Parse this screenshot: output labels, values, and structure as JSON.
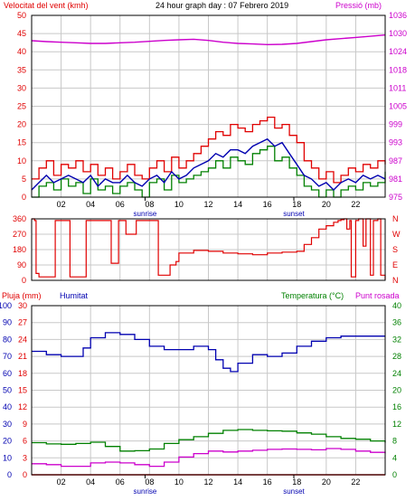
{
  "title": "24 hour graph day : 07 Febrero 2019",
  "panel1": {
    "left_label": "Velocitat del vent (kmh)",
    "right_label": "Pressió (mb)"
  },
  "panel3": {
    "label_rain": "Pluja (mm)",
    "label_humidity": "Humitat",
    "label_temp": "Temperatura (°C)",
    "label_dew": "Punt rosada"
  },
  "x_ticks": [
    "02",
    "04",
    "06",
    "08",
    "10",
    "12",
    "14",
    "16",
    "18",
    "20",
    "22"
  ],
  "sunrise_label": "sunrise",
  "sunset_label": "sunset",
  "sunrise_hour": 7.7,
  "sunset_hour": 17.8,
  "colors": {
    "wind": "#e00000",
    "gust": "#e00000",
    "avg_wind": "#0000b0",
    "speed_green": "#008000",
    "pressure": "#cc00cc",
    "direction": "#e00000",
    "humidity": "#0000b0",
    "temperature": "#008000",
    "dew_point": "#cc00cc",
    "rain": "#e00000",
    "grid": "#c8c8c8",
    "frame": "#000000"
  },
  "chart_data": [
    {
      "type": "line",
      "name": "wind-pressure",
      "title": "24 hour graph day : 07 Febrero 2019",
      "ylabel_left": "Velocitat del vent (kmh)",
      "ylabel_right": "Pressió (mb)",
      "xlim": [
        0,
        24
      ],
      "ylim_left": [
        0,
        50
      ],
      "yticks_left": [
        "0",
        "5",
        "10",
        "15",
        "20",
        "25",
        "30",
        "35",
        "40",
        "45",
        "50"
      ],
      "ylim_right": [
        975,
        1036
      ],
      "yticks_right": [
        "975",
        "981",
        "987",
        "993",
        "999",
        "1005",
        "1011",
        "1018",
        "1024",
        "1030",
        "1036"
      ],
      "series": [
        {
          "name": "gust",
          "axis": "left",
          "x": [
            0,
            0.5,
            1,
            1.5,
            2,
            2.5,
            3,
            3.5,
            4,
            4.5,
            5,
            5.5,
            6,
            6.5,
            7,
            7.5,
            8,
            8.5,
            9,
            9.5,
            10,
            10.5,
            11,
            11.5,
            12,
            12.5,
            13,
            13.5,
            14,
            14.5,
            15,
            15.5,
            16,
            16.5,
            17,
            17.5,
            18,
            18.5,
            19,
            19.5,
            20,
            20.5,
            21,
            21.5,
            22,
            22.5,
            23,
            23.5,
            24
          ],
          "y": [
            5,
            8,
            10,
            6,
            9,
            8,
            10,
            7,
            9,
            6,
            8,
            5,
            7,
            9,
            6,
            5,
            8,
            10,
            7,
            11,
            8,
            10,
            12,
            14,
            16,
            18,
            17,
            20,
            19,
            18,
            20,
            21,
            22,
            19,
            20,
            17,
            15,
            10,
            8,
            5,
            7,
            4,
            6,
            8,
            7,
            9,
            8,
            10,
            9
          ]
        },
        {
          "name": "average wind",
          "axis": "left",
          "x": [
            0,
            0.5,
            1,
            1.5,
            2,
            2.5,
            3,
            3.5,
            4,
            4.5,
            5,
            5.5,
            6,
            6.5,
            7,
            7.5,
            8,
            8.5,
            9,
            9.5,
            10,
            10.5,
            11,
            11.5,
            12,
            12.5,
            13,
            13.5,
            14,
            14.5,
            15,
            15.5,
            16,
            16.5,
            17,
            17.5,
            18,
            18.5,
            19,
            19.5,
            20,
            20.5,
            21,
            21.5,
            22,
            22.5,
            23,
            23.5,
            24
          ],
          "y": [
            2,
            4,
            6,
            4,
            5,
            6,
            5,
            4,
            6,
            3,
            5,
            4,
            4,
            6,
            4,
            3,
            5,
            6,
            4,
            7,
            5,
            6,
            8,
            9,
            10,
            12,
            11,
            13,
            13,
            12,
            14,
            15,
            16,
            14,
            15,
            12,
            9,
            6,
            5,
            3,
            4,
            2,
            4,
            5,
            4,
            6,
            5,
            6,
            5
          ]
        },
        {
          "name": "wind speed",
          "axis": "left",
          "x": [
            0,
            0.5,
            1,
            1.5,
            2,
            2.5,
            3,
            3.5,
            4,
            4.5,
            5,
            5.5,
            6,
            6.5,
            7,
            7.5,
            8,
            8.5,
            9,
            9.5,
            10,
            10.5,
            11,
            11.5,
            12,
            12.5,
            13,
            13.5,
            14,
            14.5,
            15,
            15.5,
            16,
            16.5,
            17,
            17.5,
            18,
            18.5,
            19,
            19.5,
            20,
            20.5,
            21,
            21.5,
            22,
            22.5,
            23,
            23.5,
            24
          ],
          "y": [
            0,
            3,
            4,
            2,
            5,
            3,
            4,
            1,
            5,
            2,
            3,
            1,
            3,
            4,
            2,
            0,
            4,
            5,
            2,
            6,
            4,
            5,
            6,
            7,
            8,
            10,
            8,
            11,
            10,
            9,
            12,
            13,
            14,
            10,
            11,
            8,
            6,
            3,
            2,
            0,
            2,
            0,
            2,
            3,
            2,
            4,
            3,
            4,
            7
          ]
        },
        {
          "name": "pressure",
          "axis": "right",
          "x": [
            0,
            1,
            2,
            3,
            4,
            5,
            6,
            7,
            8,
            9,
            10,
            11,
            12,
            13,
            14,
            15,
            16,
            17,
            18,
            19,
            20,
            21,
            22,
            23,
            24
          ],
          "y": [
            1027.5,
            1027.2,
            1027.0,
            1026.8,
            1026.6,
            1026.6,
            1026.8,
            1027.0,
            1027.3,
            1027.6,
            1027.8,
            1028.0,
            1027.6,
            1027.0,
            1026.6,
            1026.4,
            1026.2,
            1026.3,
            1026.6,
            1027.2,
            1027.8,
            1028.2,
            1028.6,
            1029.0,
            1029.4
          ]
        }
      ]
    },
    {
      "type": "line",
      "name": "wind-direction",
      "xlim": [
        0,
        24
      ],
      "ylim": [
        0,
        360
      ],
      "yticks_left": [
        "0",
        "90",
        "180",
        "270",
        "360"
      ],
      "yticks_right": [
        "N",
        "E",
        "S",
        "W",
        "N"
      ],
      "series": [
        {
          "name": "direction",
          "x": [
            0,
            0.2,
            0.3,
            0.5,
            1.5,
            1.6,
            2.5,
            2.6,
            3.6,
            3.7,
            4.2,
            4.3,
            5.3,
            5.4,
            5.8,
            5.9,
            6.3,
            6.4,
            7.0,
            7.1,
            8.5,
            8.6,
            9.2,
            9.4,
            9.8,
            10.0,
            11.0,
            12.0,
            13.0,
            14.0,
            15.0,
            16.0,
            17.0,
            18.0,
            18.5,
            19.0,
            19.5,
            20.0,
            20.5,
            20.8,
            21.0,
            21.2,
            21.4,
            21.6,
            21.7,
            22.0,
            22.2,
            22.5,
            22.7,
            23.0,
            23.2,
            23.5,
            23.7,
            24.0
          ],
          "y": [
            360,
            350,
            40,
            20,
            20,
            350,
            350,
            20,
            20,
            350,
            350,
            350,
            350,
            100,
            100,
            350,
            350,
            270,
            270,
            350,
            350,
            30,
            30,
            90,
            110,
            160,
            175,
            170,
            160,
            155,
            150,
            160,
            165,
            170,
            210,
            250,
            300,
            320,
            340,
            350,
            355,
            360,
            300,
            350,
            20,
            350,
            360,
            200,
            360,
            30,
            350,
            360,
            30,
            5
          ]
        }
      ]
    },
    {
      "type": "line",
      "name": "humidity-temperature",
      "labels": [
        "Pluja (mm)",
        "Humitat",
        "Temperatura (°C)",
        "Punt rosada"
      ],
      "xlim": [
        0,
        24
      ],
      "yticks_rain": [
        "0",
        "10",
        "20",
        "30",
        "40",
        "50",
        "60",
        "70",
        "80",
        "90",
        "100"
      ],
      "ylim_humidity": [
        0,
        30
      ],
      "yticks_humidity": [
        "0",
        "3",
        "6",
        "9",
        "12",
        "15",
        "18",
        "21",
        "24",
        "27",
        "30"
      ],
      "ylim_temp": [
        0,
        40
      ],
      "yticks_temp": [
        "0",
        "4",
        "8",
        "12",
        "16",
        "20",
        "24",
        "28",
        "32",
        "36",
        "40"
      ],
      "series": [
        {
          "name": "humidity",
          "x": [
            0,
            1,
            2,
            3,
            3.5,
            4,
            5,
            6,
            7,
            8,
            9,
            10,
            11,
            12,
            12.5,
            13,
            13.5,
            14,
            15,
            16,
            17,
            18,
            19,
            20,
            21,
            22,
            23,
            24
          ],
          "y": [
            73,
            71,
            70,
            70,
            75,
            81,
            84,
            83,
            80,
            76,
            74,
            74,
            76,
            74,
            68,
            63,
            61,
            66,
            71,
            70,
            72,
            76,
            79,
            81,
            82,
            82,
            82,
            82
          ]
        },
        {
          "name": "rain",
          "x": [
            0,
            24
          ],
          "y": [
            0,
            0
          ]
        },
        {
          "name": "temperature",
          "x": [
            0,
            1,
            2,
            3,
            4,
            5,
            6,
            7,
            8,
            9,
            10,
            11,
            12,
            13,
            14,
            15,
            16,
            17,
            18,
            19,
            20,
            21,
            22,
            23,
            24
          ],
          "y": [
            7.6,
            7.3,
            7.2,
            7.4,
            7.7,
            6.7,
            5.6,
            5.7,
            6.1,
            7.4,
            8.3,
            9.0,
            9.8,
            10.5,
            10.7,
            10.5,
            10.4,
            10.3,
            9.9,
            9.6,
            9.0,
            8.6,
            8.4,
            8.0,
            7.6
          ]
        },
        {
          "name": "dew point",
          "x": [
            0,
            1,
            2,
            3,
            4,
            5,
            6,
            7,
            8,
            9,
            10,
            11,
            12,
            13,
            14,
            15,
            16,
            17,
            18,
            19,
            20,
            21,
            22,
            23,
            24
          ],
          "y": [
            2.6,
            2.4,
            2.0,
            2.0,
            2.8,
            3.0,
            2.8,
            2.4,
            2.0,
            3.0,
            4.2,
            5.0,
            5.6,
            5.4,
            5.6,
            5.8,
            6.0,
            6.1,
            6.0,
            5.9,
            6.2,
            6.0,
            5.6,
            5.3,
            5.1
          ]
        }
      ]
    }
  ]
}
